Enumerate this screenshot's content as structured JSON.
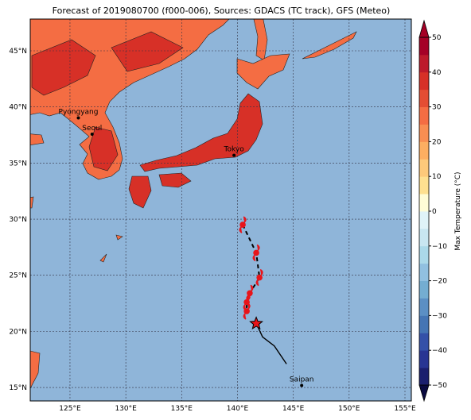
{
  "title": "Forecast of 2019080700 (f000-006), Sources: GDACS (TC track), GFS (Meteo)",
  "map": {
    "xlim": [
      121.44,
      155.57
    ],
    "ylim": [
      13.8,
      47.83
    ],
    "xticks": [
      {
        "value": 125,
        "label": "125°E"
      },
      {
        "value": 130,
        "label": "130°E"
      },
      {
        "value": 135,
        "label": "135°E"
      },
      {
        "value": 140,
        "label": "140°E"
      },
      {
        "value": 145,
        "label": "145°E"
      },
      {
        "value": 150,
        "label": "150°E"
      },
      {
        "value": 155,
        "label": "155°E"
      }
    ],
    "yticks": [
      {
        "value": 15,
        "label": "15°N"
      },
      {
        "value": 20,
        "label": "20°N"
      },
      {
        "value": 25,
        "label": "25°N"
      },
      {
        "value": 30,
        "label": "30°N"
      },
      {
        "value": 35,
        "label": "35°N"
      },
      {
        "value": 40,
        "label": "40°N"
      },
      {
        "value": 45,
        "label": "45°N"
      }
    ],
    "grid": true
  },
  "cities": [
    {
      "name": "Pyongyang",
      "lon": 125.75,
      "lat": 39.02
    },
    {
      "name": "Seoul",
      "lon": 126.98,
      "lat": 37.57
    },
    {
      "name": "Tokyo",
      "lon": 139.69,
      "lat": 35.69
    },
    {
      "name": "Saipan",
      "lon": 145.75,
      "lat": 15.18
    }
  ],
  "forecast_track": {
    "lon": [
      140.47,
      141.68,
      141.97,
      141.1,
      140.83,
      140.83
    ],
    "lat": [
      29.5,
      27.0,
      24.8,
      23.4,
      22.6,
      21.8
    ]
  },
  "past_track": {
    "lon": [
      141.68,
      142.25,
      143.3,
      144.39
    ],
    "lat": [
      20.7,
      19.5,
      18.7,
      17.1
    ]
  },
  "colorbar": {
    "label": "Max Temperature (°C)",
    "lim": [
      -50,
      50
    ],
    "ticks": [
      50,
      40,
      30,
      20,
      10,
      0,
      {
        "value": -10,
        "label": "−10"
      },
      {
        "value": -20,
        "label": "−20"
      },
      {
        "value": -30,
        "label": "−30"
      },
      {
        "value": -40,
        "label": "−40"
      },
      {
        "value": -50,
        "label": "−50"
      }
    ],
    "colors": [
      "#1b1f6e",
      "#283593",
      "#3451a8",
      "#4575b4",
      "#5b8fc4",
      "#74add1",
      "#91c0e0",
      "#abd9e9",
      "#c8e6f1",
      "#e0f3f8",
      "#fffcd6",
      "#fee090",
      "#fdc97a",
      "#fdae61",
      "#f88e52",
      "#f46d43",
      "#e44d33",
      "#d73027",
      "#bd1a2b",
      "#a50026"
    ]
  }
}
